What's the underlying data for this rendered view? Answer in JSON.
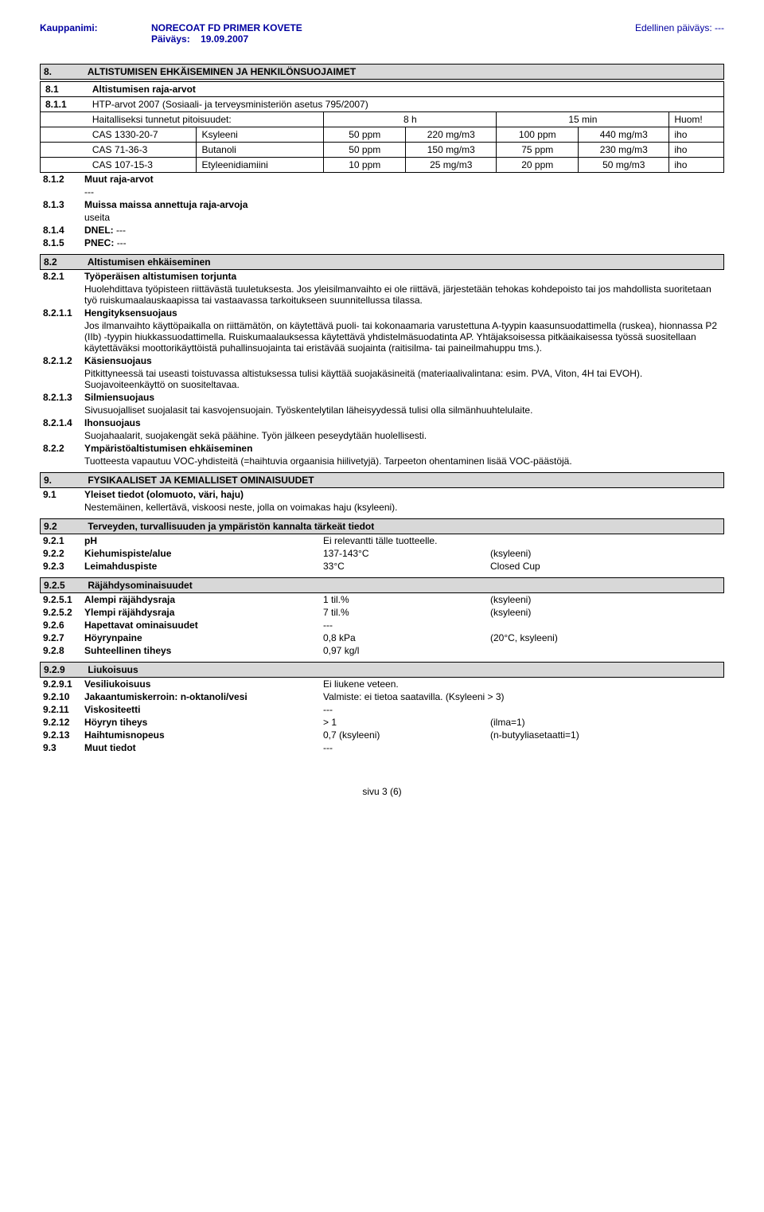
{
  "header": {
    "kauppanimi_label": "Kauppanimi:",
    "product": "NORECOAT FD PRIMER KOVETE",
    "paivays_label": "Päiväys:",
    "paivays": "19.09.2007",
    "edellinen": "Edellinen päiväys: ---"
  },
  "s8": {
    "num": "8.",
    "title": "ALTISTUMISEN EHKÄISEMINEN JA HENKILÖNSUOJAIMET",
    "s81": {
      "num": "8.1",
      "title": "Altistumisen raja-arvot",
      "s811": {
        "num": "8.1.1",
        "text": "HTP-arvot 2007 (Sosiaali- ja terveysministeriön asetus 795/2007)",
        "subhead": "Haitalliseksi tunnetut pitoisuudet:",
        "col_8h": "8 h",
        "col_15min": "15 min",
        "col_huom": "Huom!",
        "rows": [
          {
            "cas": "CAS 1330-20-7",
            "name": "Ksyleeni",
            "v1": "50 ppm",
            "v2": "220 mg/m3",
            "v3": "100 ppm",
            "v4": "440 mg/m3",
            "note": "iho"
          },
          {
            "cas": "CAS 71-36-3",
            "name": "Butanoli",
            "v1": "50 ppm",
            "v2": "150 mg/m3",
            "v3": "75 ppm",
            "v4": "230 mg/m3",
            "note": "iho"
          },
          {
            "cas": "CAS 107-15-3",
            "name": "Etyleenidiamiini",
            "v1": "10 ppm",
            "v2": "25 mg/m3",
            "v3": "20 ppm",
            "v4": "50 mg/m3",
            "note": "iho"
          }
        ]
      },
      "s812": {
        "num": "8.1.2",
        "title": "Muut raja-arvot",
        "val": "---"
      },
      "s813": {
        "num": "8.1.3",
        "title": "Muissa maissa annettuja raja-arvoja",
        "val": "useita"
      },
      "s814": {
        "num": "8.1.4",
        "title": "DNEL:",
        "val": "---"
      },
      "s815": {
        "num": "8.1.5",
        "title": "PNEC:",
        "val": "---"
      }
    },
    "s82": {
      "num": "8.2",
      "title": "Altistumisen ehkäiseminen",
      "s821": {
        "num": "8.2.1",
        "title": "Työperäisen altistumisen torjunta",
        "body": "Huolehdittava työpisteen riittävästä tuuletuksesta. Jos yleisilmanvaihto ei ole riittävä, järjestetään tehokas kohdepoisto tai jos mahdollista suoritetaan työ ruiskumaalauskaapissa tai vastaavassa tarkoitukseen suunnitellussa tilassa."
      },
      "s8211": {
        "num": "8.2.1.1",
        "title": "Hengityksensuojaus",
        "body": "Jos ilmanvaihto käyttöpaikalla on riittämätön, on käytettävä puoli- tai kokonaamaria varustettuna A-tyypin kaasunsuodattimella (ruskea), hionnassa P2 (IIb) -tyypin hiukkassuodattimella. Ruiskumaalauksessa käytettävä yhdistelmäsuodatinta AP. Yhtäjaksoisessa pitkäaikaisessa työssä suositellaan käytettäväksi moottorikäyttöistä puhallinsuojainta tai eristävää suojainta (raitisilma- tai paineilmahuppu tms.)."
      },
      "s8212": {
        "num": "8.2.1.2",
        "title": "Käsiensuojaus",
        "body": "Pitkittyneessä tai useasti toistuvassa altistuksessa tulisi käyttää suojakäsineitä (materiaalivalintana: esim. PVA, Viton, 4H tai EVOH). Suojavoiteenkäyttö on suositeltavaa."
      },
      "s8213": {
        "num": "8.2.1.3",
        "title": "Silmiensuojaus",
        "body": "Sivusuojalliset suojalasit tai kasvojensuojain. Työskentelytilan läheisyydessä tulisi olla silmänhuuhtelulaite."
      },
      "s8214": {
        "num": "8.2.1.4",
        "title": "Ihonsuojaus",
        "body": "Suojahaalarit, suojakengät sekä päähine. Työn jälkeen peseydytään huolellisesti."
      },
      "s822": {
        "num": "8.2.2",
        "title": "Ympäristöaltistumisen ehkäiseminen",
        "body": "Tuotteesta vapautuu VOC-yhdisteitä (=haihtuvia orgaanisia hiilivetyjä). Tarpeeton ohentaminen lisää VOC-päästöjä."
      }
    }
  },
  "s9": {
    "num": "9.",
    "title": "FYSIKAALISET JA KEMIALLISET OMINAISUUDET",
    "s91": {
      "num": "9.1",
      "title": "Yleiset tiedot (olomuoto, väri, haju)",
      "body": "Nestemäinen, kellertävä, viskoosi neste, jolla on voimakas haju (ksyleeni)."
    },
    "s92": {
      "num": "9.2",
      "title": "Terveyden, turvallisuuden ja ympäristön kannalta tärkeät tiedot"
    },
    "s921": {
      "num": "9.2.1",
      "label": "pH",
      "val": "Ei relevantti tälle tuotteelle.",
      "extra": ""
    },
    "s922": {
      "num": "9.2.2",
      "label": "Kiehumispiste/alue",
      "val": "137-143°C",
      "extra": "(ksyleeni)"
    },
    "s923": {
      "num": "9.2.3",
      "label": "Leimahduspiste",
      "val": "33°C",
      "extra": "Closed Cup"
    },
    "s925": {
      "num": "9.2.5",
      "title": "Räjähdysominaisuudet"
    },
    "s9251": {
      "num": "9.2.5.1",
      "label": "Alempi räjähdysraja",
      "val": "1 til.%",
      "extra": "(ksyleeni)"
    },
    "s9252": {
      "num": "9.2.5.2",
      "label": "Ylempi räjähdysraja",
      "val": "7 til.%",
      "extra": "(ksyleeni)"
    },
    "s926": {
      "num": "9.2.6",
      "label": "Hapettavat ominaisuudet",
      "val": "---",
      "extra": ""
    },
    "s927": {
      "num": "9.2.7",
      "label": "Höyrynpaine",
      "val": "0,8 kPa",
      "extra": "(20°C, ksyleeni)"
    },
    "s928": {
      "num": "9.2.8",
      "label": "Suhteellinen tiheys",
      "val": "0,97 kg/l",
      "extra": ""
    },
    "s929": {
      "num": "9.2.9",
      "title": "Liukoisuus"
    },
    "s9291": {
      "num": "9.2.9.1",
      "label": "Vesiliukoisuus",
      "val": "Ei liukene veteen.",
      "extra": ""
    },
    "s9210": {
      "num": "9.2.10",
      "label": "Jakaantumiskerroin: n-oktanoli/vesi",
      "val": "Valmiste: ei tietoa saatavilla. (Ksyleeni > 3)",
      "extra": ""
    },
    "s9211": {
      "num": "9.2.11",
      "label": "Viskositeetti",
      "val": "---",
      "extra": ""
    },
    "s9212": {
      "num": "9.2.12",
      "label": "Höyryn tiheys",
      "val": "> 1",
      "extra": "(ilma=1)"
    },
    "s9213": {
      "num": "9.2.13",
      "label": "Haihtumisnopeus",
      "val": "0,7 (ksyleeni)",
      "extra": "(n-butyyliasetaatti=1)"
    },
    "s93": {
      "num": "9.3",
      "label": "Muut tiedot",
      "val": "---",
      "extra": ""
    }
  },
  "footer": {
    "page": "sivu 3 (6)"
  }
}
